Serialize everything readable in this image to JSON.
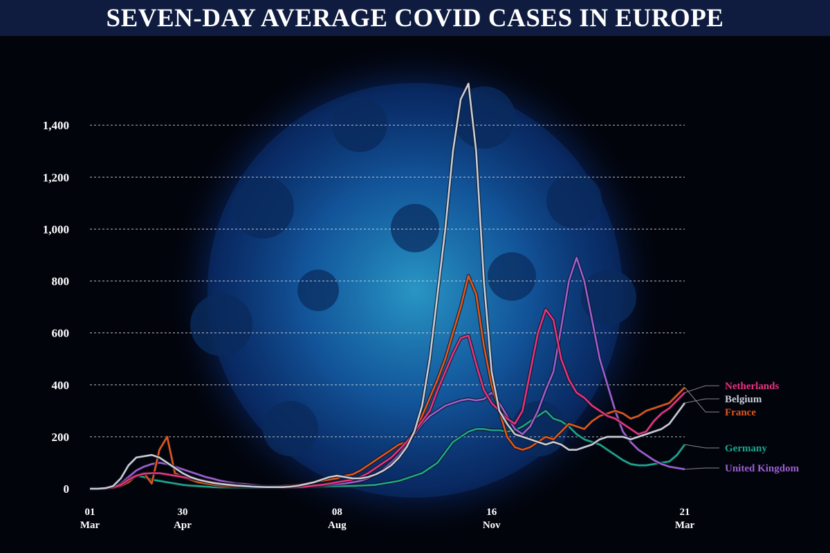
{
  "chart_data": {
    "type": "line",
    "title": "SEVEN-DAY AVERAGE COVID CASES IN EUROPE",
    "categories": [
      "01 Mar",
      null,
      null,
      null,
      null,
      null,
      null,
      null,
      null,
      null,
      null,
      null,
      "30 Apr",
      null,
      null,
      null,
      null,
      null,
      null,
      null,
      null,
      null,
      null,
      null,
      null,
      null,
      null,
      null,
      null,
      null,
      null,
      null,
      "08 Aug",
      null,
      null,
      null,
      null,
      null,
      null,
      null,
      null,
      null,
      null,
      null,
      null,
      null,
      null,
      null,
      null,
      null,
      null,
      null,
      "16 Nov",
      null,
      null,
      null,
      null,
      null,
      null,
      null,
      null,
      null,
      null,
      null,
      null,
      null,
      null,
      null,
      null,
      null,
      null,
      null,
      null,
      null,
      null,
      null,
      null,
      "21 Mar"
    ],
    "ylim": [
      0,
      1600
    ],
    "yticks": [
      0,
      200,
      400,
      600,
      800,
      {
        "value": 1000,
        "label": "1,000"
      },
      {
        "value": 1200,
        "label": "1,200"
      },
      {
        "value": 1400,
        "label": "1,400"
      }
    ],
    "grid": true,
    "series": [
      {
        "name": "Netherlands",
        "color": "#e8337f",
        "values": [
          0,
          0,
          1,
          5,
          15,
          35,
          50,
          58,
          60,
          60,
          55,
          50,
          45,
          40,
          35,
          30,
          25,
          20,
          18,
          15,
          12,
          10,
          8,
          7,
          6,
          5,
          5,
          6,
          8,
          12,
          15,
          20,
          25,
          30,
          35,
          45,
          60,
          80,
          100,
          120,
          150,
          180,
          220,
          260,
          300,
          380,
          450,
          520,
          580,
          590,
          480,
          380,
          330,
          300,
          270,
          250,
          300,
          450,
          600,
          690,
          650,
          500,
          420,
          370,
          350,
          320,
          300,
          280,
          270,
          250,
          230,
          210,
          220,
          260,
          290,
          310,
          340,
          370
        ]
      },
      {
        "name": "Belgium",
        "color": "#c9ced9",
        "values": [
          0,
          0,
          2,
          10,
          40,
          90,
          120,
          125,
          130,
          120,
          100,
          80,
          60,
          45,
          35,
          28,
          22,
          18,
          15,
          12,
          10,
          8,
          7,
          6,
          6,
          6,
          8,
          12,
          18,
          25,
          35,
          45,
          50,
          45,
          40,
          40,
          45,
          55,
          70,
          90,
          120,
          160,
          220,
          320,
          500,
          750,
          1000,
          1300,
          1500,
          1560,
          1300,
          800,
          450,
          300,
          250,
          210,
          200,
          190,
          180,
          170,
          180,
          170,
          150,
          150,
          160,
          170,
          190,
          200,
          200,
          200,
          190,
          200,
          210,
          220,
          230,
          250,
          290,
          330
        ]
      },
      {
        "name": "France",
        "color": "#e2561c",
        "values": [
          0,
          0,
          1,
          3,
          10,
          25,
          50,
          60,
          20,
          150,
          200,
          60,
          45,
          35,
          25,
          20,
          15,
          12,
          10,
          8,
          8,
          8,
          8,
          8,
          8,
          10,
          12,
          15,
          20,
          25,
          30,
          35,
          40,
          50,
          55,
          70,
          90,
          110,
          130,
          150,
          170,
          180,
          220,
          280,
          350,
          420,
          500,
          600,
          700,
          820,
          750,
          550,
          400,
          300,
          200,
          160,
          150,
          160,
          180,
          200,
          190,
          220,
          250,
          240,
          230,
          260,
          280,
          290,
          300,
          290,
          270,
          280,
          300,
          310,
          320,
          330,
          360,
          390
        ]
      },
      {
        "name": "Germany",
        "color": "#1ba88e",
        "values": [
          0,
          0,
          1,
          5,
          20,
          40,
          50,
          45,
          35,
          30,
          25,
          20,
          15,
          12,
          10,
          8,
          6,
          5,
          5,
          4,
          4,
          4,
          4,
          4,
          4,
          4,
          5,
          5,
          6,
          7,
          8,
          9,
          10,
          10,
          11,
          12,
          13,
          15,
          20,
          25,
          30,
          40,
          50,
          60,
          80,
          100,
          140,
          180,
          200,
          220,
          230,
          230,
          225,
          225,
          220,
          225,
          240,
          260,
          280,
          300,
          270,
          260,
          240,
          210,
          190,
          180,
          170,
          150,
          130,
          110,
          95,
          90,
          90,
          95,
          100,
          105,
          130,
          170
        ]
      },
      {
        "name": "United Kingdom",
        "color": "#9d5fd4",
        "values": [
          0,
          0,
          1,
          5,
          20,
          45,
          70,
          85,
          95,
          100,
          95,
          85,
          75,
          65,
          55,
          45,
          38,
          30,
          25,
          20,
          18,
          15,
          12,
          10,
          10,
          10,
          10,
          10,
          10,
          10,
          12,
          15,
          18,
          20,
          25,
          30,
          40,
          55,
          75,
          100,
          130,
          170,
          210,
          250,
          280,
          300,
          320,
          330,
          340,
          345,
          340,
          345,
          370,
          330,
          280,
          230,
          210,
          240,
          300,
          380,
          450,
          620,
          800,
          890,
          800,
          650,
          500,
          400,
          300,
          220,
          180,
          150,
          130,
          110,
          95,
          85,
          80,
          75
        ]
      }
    ]
  }
}
